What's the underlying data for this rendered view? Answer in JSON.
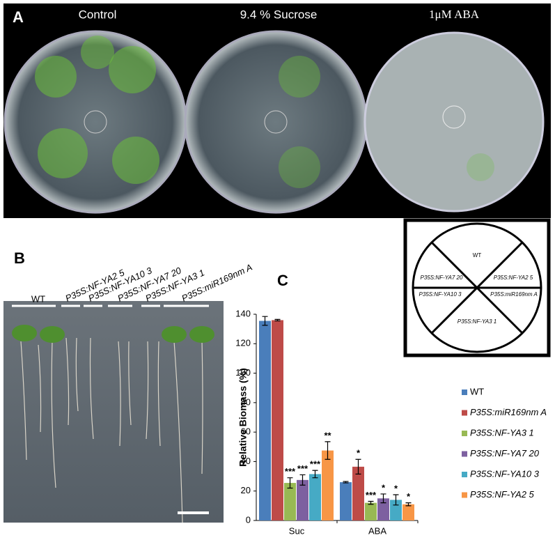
{
  "panel_a": {
    "label": "A",
    "titles": [
      "Control",
      "9.4 % Sucrose",
      "1μM ABA"
    ]
  },
  "panel_b": {
    "label": "B",
    "genotypes": [
      "WT",
      "P35S:NF-YA2 5",
      "P35S:NF-YA10 3",
      "P35S:NF-YA7 20",
      "P35S:NF-YA3 1",
      "P35S:miR169nm A"
    ]
  },
  "diagram": {
    "sectors": [
      "WT",
      "P35S:NF-YA7 20",
      "P35S:NF-YA2 5",
      "P35S:NF-YA10 3",
      "P35S:miR169nm A",
      "P35S:NF-YA3 1"
    ]
  },
  "chart_data": {
    "type": "bar",
    "panel_label": "C",
    "y_label": "Relative Biomass (%)",
    "categories": [
      "Suc",
      "ABA"
    ],
    "ylim": [
      0,
      140
    ],
    "yticks": [
      0,
      20,
      40,
      60,
      80,
      100,
      120,
      140
    ],
    "series": [
      {
        "name": "WT",
        "color": "#4a7ebb",
        "values": [
          135.5,
          26
        ],
        "errors": [
          3,
          0.5
        ],
        "significance": [
          null,
          null
        ]
      },
      {
        "name": "P35S:miR169nm A",
        "color": "#be4b48",
        "values": [
          136,
          36.5
        ],
        "errors": [
          0.5,
          5
        ],
        "significance": [
          null,
          "*"
        ]
      },
      {
        "name": "P35S:NF-YA3 1",
        "color": "#98b954",
        "values": [
          25.5,
          12
        ],
        "errors": [
          3.5,
          1
        ],
        "significance": [
          "***",
          "***"
        ]
      },
      {
        "name": "P35S:NF-YA7 20",
        "color": "#7d60a0",
        "values": [
          27.5,
          15
        ],
        "errors": [
          3.5,
          3
        ],
        "significance": [
          "***",
          "*"
        ]
      },
      {
        "name": "P35S:NF-YA10 3",
        "color": "#46aac5",
        "values": [
          31.5,
          14
        ],
        "errors": [
          2.5,
          3.5
        ],
        "significance": [
          "***",
          "*"
        ]
      },
      {
        "name": "P35S:NF-YA2 5",
        "color": "#f79646",
        "values": [
          47.5,
          11
        ],
        "errors": [
          6,
          1
        ],
        "significance": [
          "**",
          "*"
        ]
      }
    ]
  }
}
